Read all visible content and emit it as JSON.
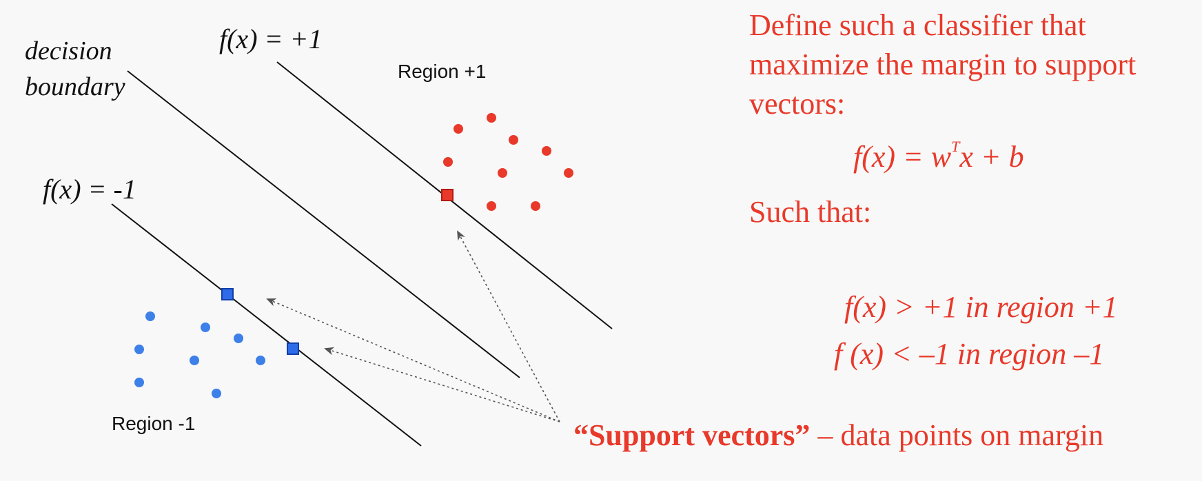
{
  "labels": {
    "decision_boundary_line1": "decision",
    "decision_boundary_line2": "boundary",
    "f_plus": "f(x) = +1",
    "f_minus": "f(x) = -1",
    "region_plus": "Region +1",
    "region_minus": "Region -1"
  },
  "text": {
    "intro_line1": "Define such a classifier that",
    "intro_line2": "maximize the margin to support",
    "intro_line3": "vectors:",
    "formula_pre": "f(x) = w",
    "formula_sup": "T",
    "formula_post": "x + b",
    "such_that": "Such that:",
    "condition1": "f(x) > +1 in region +1",
    "condition2": "f (x) < –1 in region –1",
    "support_vectors_bold": "“Support vectors”",
    "support_vectors_rest": " – data points on margin"
  },
  "colors": {
    "accent_red": "#e8392a",
    "point_blue": "#3d80e8",
    "support_blue": "#2f6be8",
    "line": "#111111",
    "arrow": "#555555"
  },
  "points": {
    "region_plus": 10,
    "region_minus": 9
  },
  "support_vectors": {
    "region_plus": 1,
    "region_minus": 2
  }
}
